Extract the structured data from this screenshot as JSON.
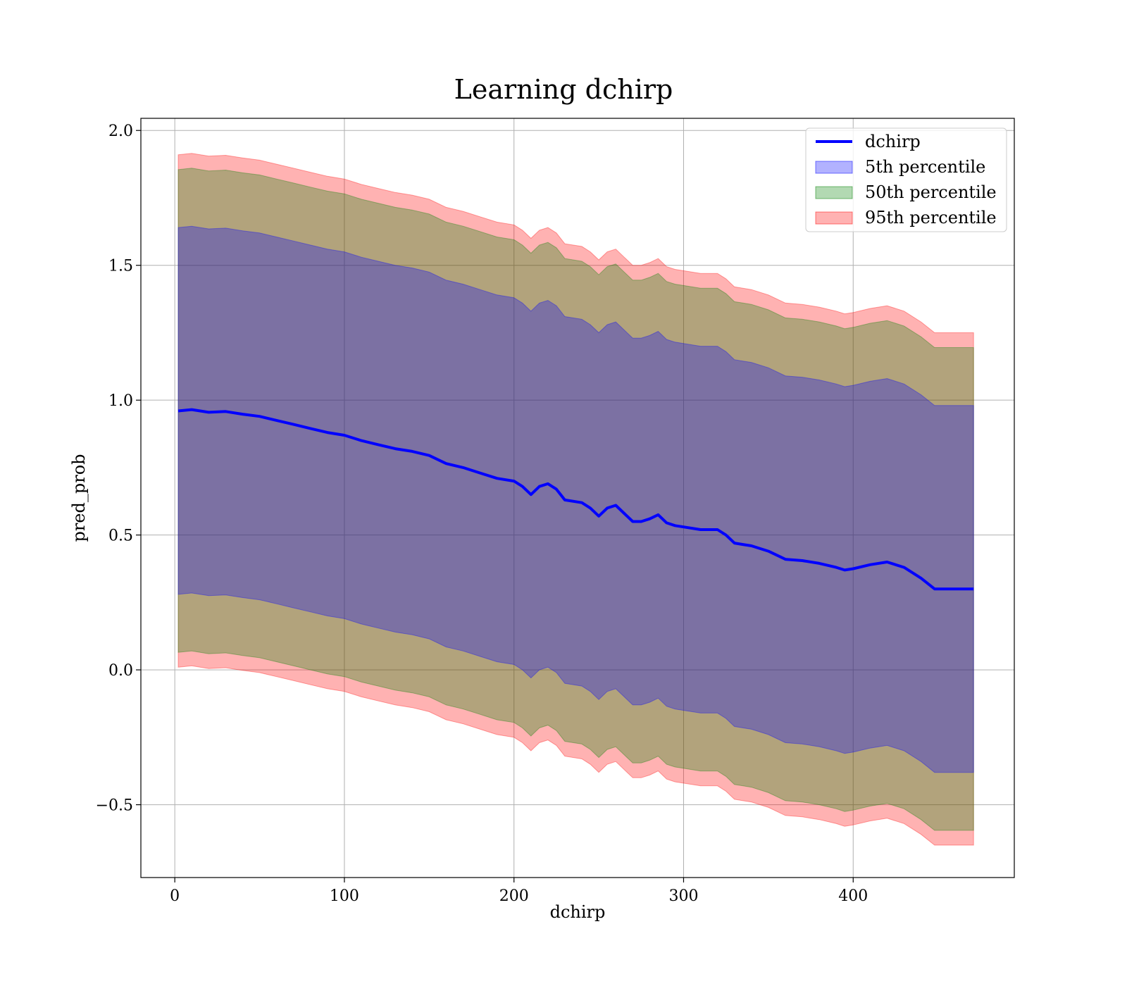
{
  "chart_data": {
    "type": "area",
    "title": "Learning dchirp",
    "xlabel": "dchirp",
    "ylabel": "pred_prob",
    "xlim": [
      -20,
      495
    ],
    "ylim": [
      -0.77,
      2.045
    ],
    "xticks": [
      0,
      100,
      200,
      300,
      400
    ],
    "yticks": [
      -0.5,
      0.0,
      0.5,
      1.0,
      1.5,
      2.0
    ],
    "xtick_labels": [
      "0",
      "100",
      "200",
      "300",
      "400"
    ],
    "ytick_labels": [
      "−0.5",
      "0.0",
      "0.5",
      "1.0",
      "1.5",
      "2.0"
    ],
    "grid": true,
    "legend_position": "top-right",
    "x": [
      2,
      10,
      20,
      30,
      40,
      50,
      60,
      70,
      80,
      90,
      100,
      110,
      120,
      130,
      140,
      150,
      160,
      170,
      180,
      190,
      200,
      205,
      210,
      215,
      220,
      225,
      230,
      240,
      245,
      250,
      255,
      260,
      265,
      270,
      275,
      280,
      285,
      290,
      295,
      300,
      310,
      320,
      325,
      330,
      335,
      340,
      350,
      360,
      370,
      380,
      390,
      395,
      400,
      410,
      420,
      430,
      440,
      448,
      460,
      471
    ],
    "series": [
      {
        "name": "dchirp",
        "kind": "line",
        "color": "#0000ff",
        "values": [
          0.96,
          0.965,
          0.955,
          0.958,
          0.948,
          0.94,
          0.925,
          0.91,
          0.895,
          0.88,
          0.87,
          0.85,
          0.835,
          0.82,
          0.81,
          0.795,
          0.765,
          0.75,
          0.73,
          0.71,
          0.7,
          0.68,
          0.65,
          0.68,
          0.69,
          0.67,
          0.63,
          0.62,
          0.6,
          0.57,
          0.6,
          0.61,
          0.58,
          0.55,
          0.55,
          0.56,
          0.575,
          0.545,
          0.535,
          0.53,
          0.52,
          0.52,
          0.5,
          0.47,
          0.465,
          0.46,
          0.44,
          0.41,
          0.405,
          0.395,
          0.38,
          0.37,
          0.375,
          0.39,
          0.4,
          0.38,
          0.34,
          0.3,
          0.3,
          0.3
        ]
      },
      {
        "name": "5th percentile",
        "kind": "band",
        "color": "#0000ff",
        "opacity": 0.3,
        "lower": [
          0.28,
          0.285,
          0.275,
          0.278,
          0.268,
          0.26,
          0.245,
          0.23,
          0.215,
          0.2,
          0.19,
          0.17,
          0.155,
          0.14,
          0.13,
          0.115,
          0.085,
          0.07,
          0.05,
          0.03,
          0.02,
          0.0,
          -0.03,
          0.0,
          0.01,
          -0.01,
          -0.05,
          -0.06,
          -0.08,
          -0.11,
          -0.08,
          -0.07,
          -0.1,
          -0.13,
          -0.13,
          -0.12,
          -0.105,
          -0.135,
          -0.145,
          -0.15,
          -0.16,
          -0.16,
          -0.18,
          -0.21,
          -0.215,
          -0.22,
          -0.24,
          -0.27,
          -0.275,
          -0.285,
          -0.3,
          -0.31,
          -0.305,
          -0.29,
          -0.28,
          -0.3,
          -0.34,
          -0.38,
          -0.38,
          -0.38
        ],
        "upper": [
          1.64,
          1.645,
          1.635,
          1.638,
          1.628,
          1.62,
          1.605,
          1.59,
          1.575,
          1.56,
          1.55,
          1.53,
          1.515,
          1.5,
          1.49,
          1.475,
          1.445,
          1.43,
          1.41,
          1.39,
          1.38,
          1.36,
          1.33,
          1.36,
          1.37,
          1.35,
          1.31,
          1.3,
          1.28,
          1.25,
          1.28,
          1.29,
          1.26,
          1.23,
          1.23,
          1.24,
          1.255,
          1.225,
          1.215,
          1.21,
          1.2,
          1.2,
          1.18,
          1.15,
          1.145,
          1.14,
          1.12,
          1.09,
          1.085,
          1.075,
          1.06,
          1.05,
          1.055,
          1.07,
          1.08,
          1.06,
          1.02,
          0.98,
          0.98,
          0.98
        ]
      },
      {
        "name": "50th percentile",
        "kind": "band",
        "color": "#008000",
        "opacity": 0.3,
        "lower": [
          0.065,
          0.07,
          0.06,
          0.063,
          0.053,
          0.045,
          0.03,
          0.015,
          0.0,
          -0.015,
          -0.025,
          -0.045,
          -0.06,
          -0.075,
          -0.085,
          -0.1,
          -0.13,
          -0.145,
          -0.165,
          -0.185,
          -0.195,
          -0.215,
          -0.245,
          -0.215,
          -0.205,
          -0.225,
          -0.265,
          -0.275,
          -0.295,
          -0.325,
          -0.295,
          -0.285,
          -0.315,
          -0.345,
          -0.345,
          -0.335,
          -0.32,
          -0.35,
          -0.36,
          -0.365,
          -0.375,
          -0.375,
          -0.395,
          -0.425,
          -0.43,
          -0.435,
          -0.455,
          -0.485,
          -0.49,
          -0.5,
          -0.515,
          -0.525,
          -0.52,
          -0.505,
          -0.495,
          -0.515,
          -0.555,
          -0.595,
          -0.595,
          -0.595
        ],
        "upper": [
          1.855,
          1.86,
          1.85,
          1.853,
          1.843,
          1.835,
          1.82,
          1.805,
          1.79,
          1.775,
          1.765,
          1.745,
          1.73,
          1.715,
          1.705,
          1.69,
          1.66,
          1.645,
          1.625,
          1.605,
          1.595,
          1.575,
          1.545,
          1.575,
          1.585,
          1.565,
          1.525,
          1.515,
          1.495,
          1.465,
          1.495,
          1.505,
          1.475,
          1.445,
          1.445,
          1.455,
          1.47,
          1.44,
          1.43,
          1.425,
          1.415,
          1.415,
          1.395,
          1.365,
          1.36,
          1.355,
          1.335,
          1.305,
          1.3,
          1.29,
          1.275,
          1.265,
          1.27,
          1.285,
          1.295,
          1.275,
          1.235,
          1.195,
          1.195,
          1.195
        ]
      },
      {
        "name": "95th percentile",
        "kind": "band",
        "color": "#ff0000",
        "opacity": 0.3,
        "lower": [
          0.01,
          0.015,
          0.005,
          0.008,
          -0.002,
          -0.01,
          -0.025,
          -0.04,
          -0.055,
          -0.07,
          -0.08,
          -0.1,
          -0.115,
          -0.13,
          -0.14,
          -0.155,
          -0.185,
          -0.2,
          -0.22,
          -0.24,
          -0.25,
          -0.27,
          -0.3,
          -0.27,
          -0.26,
          -0.28,
          -0.32,
          -0.33,
          -0.35,
          -0.38,
          -0.35,
          -0.34,
          -0.37,
          -0.4,
          -0.4,
          -0.39,
          -0.375,
          -0.405,
          -0.415,
          -0.42,
          -0.43,
          -0.43,
          -0.45,
          -0.48,
          -0.485,
          -0.49,
          -0.51,
          -0.54,
          -0.545,
          -0.555,
          -0.57,
          -0.58,
          -0.575,
          -0.56,
          -0.55,
          -0.57,
          -0.61,
          -0.65,
          -0.65,
          -0.65
        ],
        "upper": [
          1.91,
          1.915,
          1.905,
          1.908,
          1.898,
          1.89,
          1.875,
          1.86,
          1.845,
          1.83,
          1.82,
          1.8,
          1.785,
          1.77,
          1.76,
          1.745,
          1.715,
          1.7,
          1.68,
          1.66,
          1.65,
          1.63,
          1.6,
          1.63,
          1.64,
          1.62,
          1.58,
          1.57,
          1.55,
          1.52,
          1.55,
          1.56,
          1.53,
          1.5,
          1.5,
          1.51,
          1.525,
          1.495,
          1.485,
          1.48,
          1.47,
          1.47,
          1.45,
          1.42,
          1.415,
          1.41,
          1.39,
          1.36,
          1.355,
          1.345,
          1.33,
          1.32,
          1.325,
          1.34,
          1.35,
          1.33,
          1.29,
          1.25,
          1.25,
          1.25
        ]
      }
    ]
  }
}
